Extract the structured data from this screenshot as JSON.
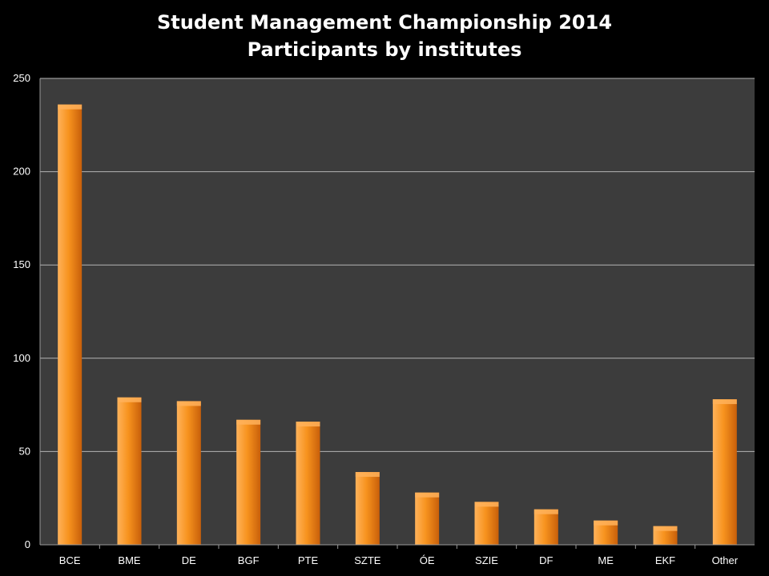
{
  "chart_data": {
    "type": "bar",
    "title_lines": [
      "Student Management Championship 2014",
      "Participants by institutes"
    ],
    "categories": [
      "BCE",
      "BME",
      "DE",
      "BGF",
      "PTE",
      "SZTE",
      "ÓE",
      "SZIE",
      "DF",
      "ME",
      "EKF",
      "Other"
    ],
    "values": [
      236,
      79,
      77,
      67,
      66,
      39,
      28,
      23,
      19,
      13,
      10,
      78
    ],
    "yticks": [
      0,
      50,
      100,
      150,
      200,
      250
    ],
    "ylim": [
      0,
      250
    ],
    "grid": true,
    "legend": "none",
    "colors": {
      "background": "#000000",
      "plot_area": "#3c3c3c",
      "grid": "#b4b4b4",
      "bar_light": "#ffb25a",
      "bar_mid": "#f7931e",
      "bar_dark": "#c85f0a"
    }
  }
}
